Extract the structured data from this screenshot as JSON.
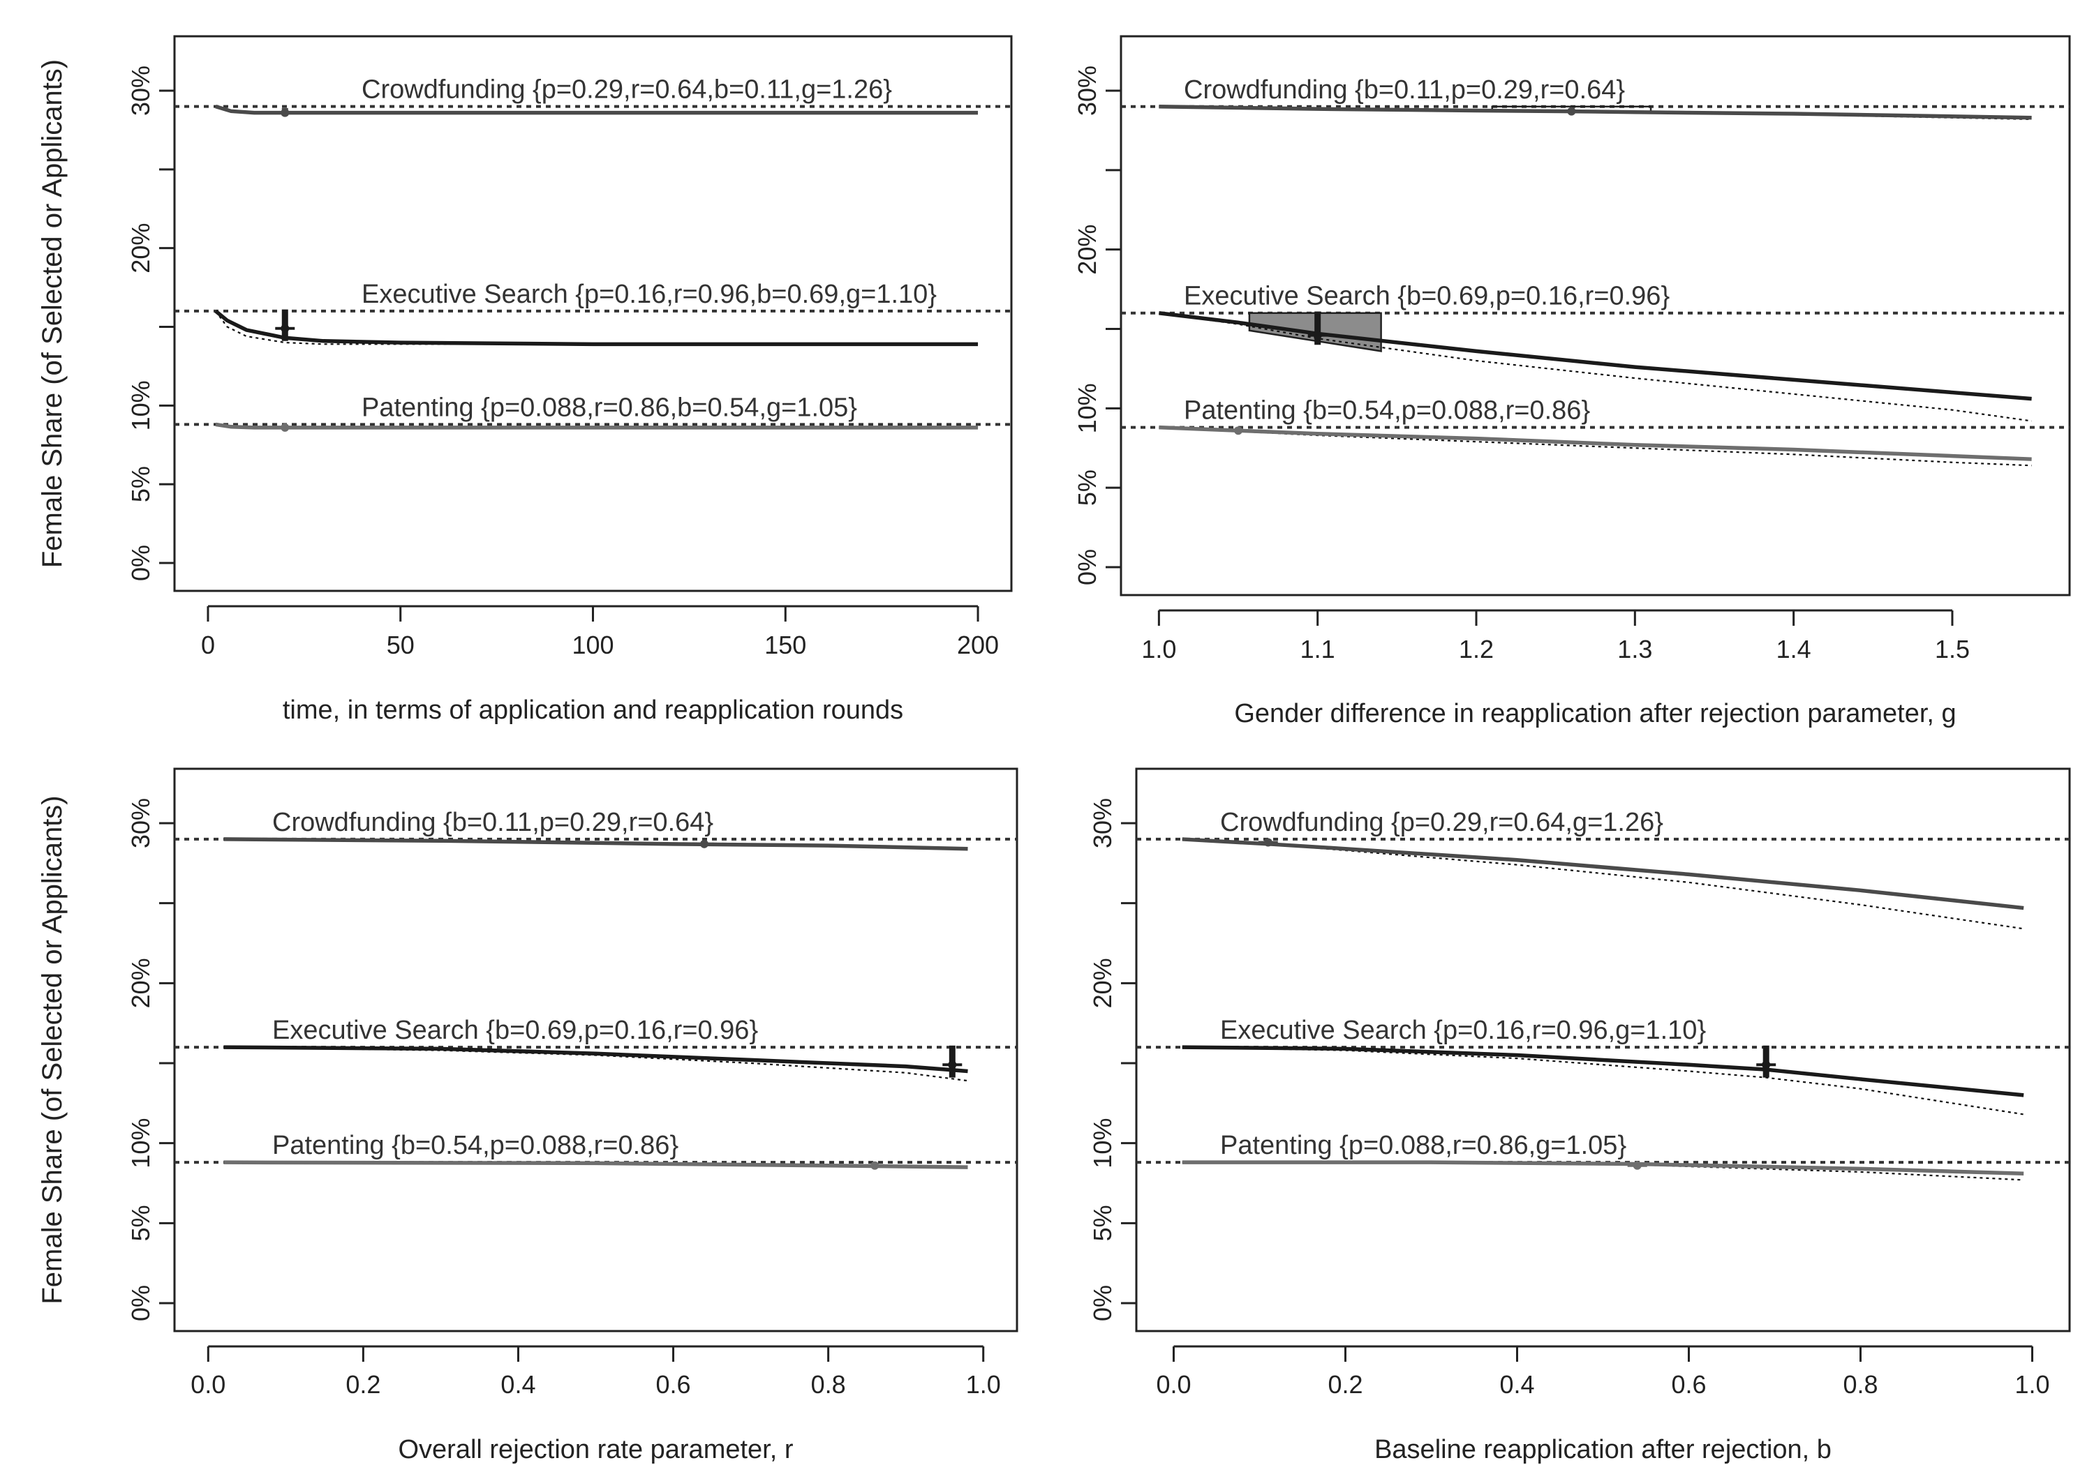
{
  "ylabel": "Female Share (of Selected or Applicants)",
  "yticks": [
    "0%",
    "5%",
    "10%",
    "20%",
    "30%"
  ],
  "colors": {
    "crowdfunding": "#4a4a4a",
    "executive": "#1a1a1a",
    "patenting": "#6e6e6e",
    "box_fill": "#8c8c8c"
  },
  "chart_data": [
    {
      "type": "line",
      "xlabel": "time, in terms of application and reapplication rounds",
      "xlim": [
        0,
        200
      ],
      "xticks": [
        0,
        50,
        100,
        150,
        200
      ],
      "xtick_labels": [
        "0",
        "50",
        "100",
        "150",
        "200"
      ],
      "ylim": [
        0,
        30
      ],
      "marker_x": 20,
      "series": [
        {
          "name": "Crowdfunding {p=0.29,r=0.64,b=0.11,g=1.26}",
          "key": "crowdfunding",
          "baseline": 29.0,
          "selected": [
            [
              2,
              29.0
            ],
            [
              6,
              28.7
            ],
            [
              12,
              28.6
            ],
            [
              20,
              28.6
            ],
            [
              60,
              28.6
            ],
            [
              200,
              28.6
            ]
          ],
          "applicants": [
            [
              2,
              29.0
            ],
            [
              6,
              28.7
            ],
            [
              12,
              28.6
            ],
            [
              20,
              28.6
            ],
            [
              60,
              28.6
            ],
            [
              200,
              28.6
            ]
          ],
          "marker": {
            "center": 28.6,
            "low": 28.4,
            "high": 28.9
          }
        },
        {
          "name": "Executive Search {p=0.16,r=0.96,b=0.69,g=1.10}",
          "key": "executive",
          "baseline": 16.0,
          "selected": [
            [
              2,
              16.0
            ],
            [
              5,
              15.4
            ],
            [
              10,
              14.8
            ],
            [
              20,
              14.3
            ],
            [
              30,
              14.1
            ],
            [
              50,
              14.0
            ],
            [
              100,
              13.9
            ],
            [
              200,
              13.9
            ]
          ],
          "applicants": [
            [
              2,
              16.0
            ],
            [
              5,
              15.0
            ],
            [
              10,
              14.4
            ],
            [
              20,
              14.0
            ],
            [
              30,
              13.9
            ],
            [
              50,
              13.9
            ],
            [
              100,
              13.9
            ],
            [
              200,
              13.9
            ]
          ],
          "marker": {
            "center": 14.9,
            "low": 14.1,
            "high": 16.1
          }
        },
        {
          "name": "Patenting {p=0.088,r=0.86,b=0.54,g=1.05}",
          "key": "patenting",
          "baseline": 8.8,
          "selected": [
            [
              2,
              8.8
            ],
            [
              6,
              8.65
            ],
            [
              12,
              8.6
            ],
            [
              20,
              8.6
            ],
            [
              200,
              8.6
            ]
          ],
          "applicants": [
            [
              2,
              8.8
            ],
            [
              6,
              8.65
            ],
            [
              12,
              8.6
            ],
            [
              20,
              8.6
            ],
            [
              200,
              8.6
            ]
          ],
          "marker": {
            "center": 8.6,
            "low": 8.5,
            "high": 8.8
          }
        }
      ]
    },
    {
      "type": "line",
      "xlabel": "Gender difference in reapplication after rejection parameter, g",
      "xlim": [
        1.0,
        1.55
      ],
      "xticks": [
        1.0,
        1.1,
        1.2,
        1.3,
        1.4,
        1.5
      ],
      "xtick_labels": [
        "1.0",
        "1.1",
        "1.2",
        "1.3",
        "1.4",
        "1.5"
      ],
      "ylim": [
        0,
        30
      ],
      "series": [
        {
          "name": "Crowdfunding {b=0.11,p=0.29,r=0.64}",
          "key": "crowdfunding",
          "baseline": 29.0,
          "selected": [
            [
              1.0,
              29.0
            ],
            [
              1.1,
              28.85
            ],
            [
              1.2,
              28.75
            ],
            [
              1.26,
              28.7
            ],
            [
              1.3,
              28.65
            ],
            [
              1.4,
              28.55
            ],
            [
              1.55,
              28.3
            ]
          ],
          "applicants": [
            [
              1.0,
              29.0
            ],
            [
              1.1,
              28.85
            ],
            [
              1.2,
              28.7
            ],
            [
              1.26,
              28.65
            ],
            [
              1.3,
              28.6
            ],
            [
              1.4,
              28.5
            ],
            [
              1.55,
              28.2
            ]
          ],
          "marker": {
            "x": 1.26,
            "center": 28.7,
            "low": 28.6,
            "high": 28.9
          },
          "box": {
            "x0": 1.21,
            "x1": 1.31,
            "top0": 29.0,
            "top1": 29.0,
            "bot0": 28.7,
            "bot1": 28.6
          }
        },
        {
          "name": "Executive Search {b=0.69,p=0.16,r=0.96}",
          "key": "executive",
          "baseline": 16.0,
          "selected": [
            [
              1.0,
              16.0
            ],
            [
              1.05,
              15.4
            ],
            [
              1.1,
              14.7
            ],
            [
              1.2,
              13.6
            ],
            [
              1.3,
              12.6
            ],
            [
              1.4,
              11.8
            ],
            [
              1.5,
              11.0
            ],
            [
              1.55,
              10.6
            ]
          ],
          "applicants": [
            [
              1.0,
              16.0
            ],
            [
              1.05,
              15.3
            ],
            [
              1.1,
              14.4
            ],
            [
              1.2,
              13.0
            ],
            [
              1.3,
              11.9
            ],
            [
              1.4,
              10.9
            ],
            [
              1.5,
              9.9
            ],
            [
              1.55,
              9.2
            ]
          ],
          "marker": {
            "x": 1.1,
            "center": 14.6,
            "low": 14.0,
            "high": 16.1
          },
          "box": {
            "x0": 1.057,
            "x1": 1.14,
            "top0": 16.0,
            "top1": 16.0,
            "bot0": 14.9,
            "bot1": 13.6
          }
        },
        {
          "name": "Patenting {b=0.54,p=0.088,r=0.86}",
          "key": "patenting",
          "baseline": 8.8,
          "selected": [
            [
              1.0,
              8.8
            ],
            [
              1.05,
              8.6
            ],
            [
              1.1,
              8.4
            ],
            [
              1.2,
              8.1
            ],
            [
              1.3,
              7.7
            ],
            [
              1.4,
              7.4
            ],
            [
              1.5,
              7.0
            ],
            [
              1.55,
              6.8
            ]
          ],
          "applicants": [
            [
              1.0,
              8.8
            ],
            [
              1.05,
              8.55
            ],
            [
              1.1,
              8.3
            ],
            [
              1.2,
              7.9
            ],
            [
              1.3,
              7.5
            ],
            [
              1.4,
              7.1
            ],
            [
              1.5,
              6.6
            ],
            [
              1.55,
              6.4
            ]
          ],
          "marker": {
            "x": 1.05,
            "center": 8.6,
            "low": 8.5,
            "high": 8.8
          }
        }
      ]
    },
    {
      "type": "line",
      "xlabel": "Overall rejection rate parameter, r",
      "xlim": [
        0,
        1.0
      ],
      "xticks": [
        0.0,
        0.2,
        0.4,
        0.6,
        0.8,
        1.0
      ],
      "xtick_labels": [
        "0.0",
        "0.2",
        "0.4",
        "0.6",
        "0.8",
        "1.0"
      ],
      "ylim": [
        0,
        30
      ],
      "series": [
        {
          "name": "Crowdfunding {b=0.11,p=0.29,r=0.64}",
          "key": "crowdfunding",
          "baseline": 29.0,
          "selected": [
            [
              0.02,
              29.0
            ],
            [
              0.3,
              28.9
            ],
            [
              0.6,
              28.7
            ],
            [
              0.8,
              28.6
            ],
            [
              0.98,
              28.4
            ]
          ],
          "applicants": [
            [
              0.02,
              29.0
            ],
            [
              0.3,
              28.9
            ],
            [
              0.6,
              28.7
            ],
            [
              0.8,
              28.6
            ],
            [
              0.98,
              28.4
            ]
          ],
          "marker": {
            "x": 0.64,
            "center": 28.7,
            "low": 28.6,
            "high": 28.8
          }
        },
        {
          "name": "Executive Search {b=0.69,p=0.16,r=0.96}",
          "key": "executive",
          "baseline": 16.0,
          "selected": [
            [
              0.02,
              16.0
            ],
            [
              0.3,
              15.9
            ],
            [
              0.5,
              15.6
            ],
            [
              0.7,
              15.2
            ],
            [
              0.9,
              14.8
            ],
            [
              0.98,
              14.5
            ]
          ],
          "applicants": [
            [
              0.02,
              16.0
            ],
            [
              0.3,
              15.8
            ],
            [
              0.5,
              15.5
            ],
            [
              0.7,
              15.0
            ],
            [
              0.9,
              14.4
            ],
            [
              0.98,
              13.9
            ]
          ],
          "marker": {
            "x": 0.96,
            "center": 14.9,
            "low": 14.1,
            "high": 16.1
          }
        },
        {
          "name": "Patenting {b=0.54,p=0.088,r=0.86}",
          "key": "patenting",
          "baseline": 8.8,
          "selected": [
            [
              0.02,
              8.8
            ],
            [
              0.5,
              8.75
            ],
            [
              0.8,
              8.6
            ],
            [
              0.98,
              8.5
            ]
          ],
          "applicants": [
            [
              0.02,
              8.8
            ],
            [
              0.5,
              8.75
            ],
            [
              0.8,
              8.6
            ],
            [
              0.98,
              8.5
            ]
          ],
          "marker": {
            "x": 0.86,
            "center": 8.6,
            "low": 8.5,
            "high": 8.7
          }
        }
      ]
    },
    {
      "type": "line",
      "xlabel": "Baseline reapplication after rejection, b",
      "xlim": [
        0,
        1.0
      ],
      "xticks": [
        0.0,
        0.2,
        0.4,
        0.6,
        0.8,
        1.0
      ],
      "xtick_labels": [
        "0.0",
        "0.2",
        "0.4",
        "0.6",
        "0.8",
        "1.0"
      ],
      "ylim": [
        0,
        30
      ],
      "series": [
        {
          "name": "Crowdfunding {p=0.29,r=0.64,g=1.26}",
          "key": "crowdfunding",
          "baseline": 29.0,
          "selected": [
            [
              0.01,
              29.0
            ],
            [
              0.11,
              28.7
            ],
            [
              0.2,
              28.4
            ],
            [
              0.4,
              27.7
            ],
            [
              0.6,
              26.8
            ],
            [
              0.8,
              25.8
            ],
            [
              0.99,
              24.7
            ]
          ],
          "applicants": [
            [
              0.01,
              29.0
            ],
            [
              0.11,
              28.7
            ],
            [
              0.2,
              28.3
            ],
            [
              0.4,
              27.4
            ],
            [
              0.6,
              26.3
            ],
            [
              0.8,
              24.9
            ],
            [
              0.99,
              23.4
            ]
          ],
          "marker": {
            "x": 0.11,
            "center": 28.8,
            "low": 28.6,
            "high": 29.0
          }
        },
        {
          "name": "Executive Search {p=0.16,r=0.96,g=1.10}",
          "key": "executive",
          "baseline": 16.0,
          "selected": [
            [
              0.01,
              16.0
            ],
            [
              0.2,
              15.9
            ],
            [
              0.4,
              15.5
            ],
            [
              0.6,
              14.9
            ],
            [
              0.69,
              14.6
            ],
            [
              0.8,
              14.0
            ],
            [
              0.99,
              13.0
            ]
          ],
          "applicants": [
            [
              0.01,
              16.0
            ],
            [
              0.2,
              15.8
            ],
            [
              0.4,
              15.3
            ],
            [
              0.6,
              14.5
            ],
            [
              0.69,
              14.1
            ],
            [
              0.8,
              13.4
            ],
            [
              0.99,
              11.8
            ]
          ],
          "marker": {
            "x": 0.69,
            "center": 14.9,
            "low": 14.1,
            "high": 16.1
          }
        },
        {
          "name": "Patenting {p=0.088,r=0.86,g=1.05}",
          "key": "patenting",
          "baseline": 8.8,
          "selected": [
            [
              0.01,
              8.8
            ],
            [
              0.3,
              8.8
            ],
            [
              0.54,
              8.7
            ],
            [
              0.8,
              8.4
            ],
            [
              0.99,
              8.1
            ]
          ],
          "applicants": [
            [
              0.01,
              8.8
            ],
            [
              0.3,
              8.8
            ],
            [
              0.54,
              8.65
            ],
            [
              0.8,
              8.2
            ],
            [
              0.99,
              7.7
            ]
          ],
          "marker": {
            "x": 0.54,
            "center": 8.6,
            "low": 8.5,
            "high": 8.8
          }
        }
      ]
    }
  ]
}
